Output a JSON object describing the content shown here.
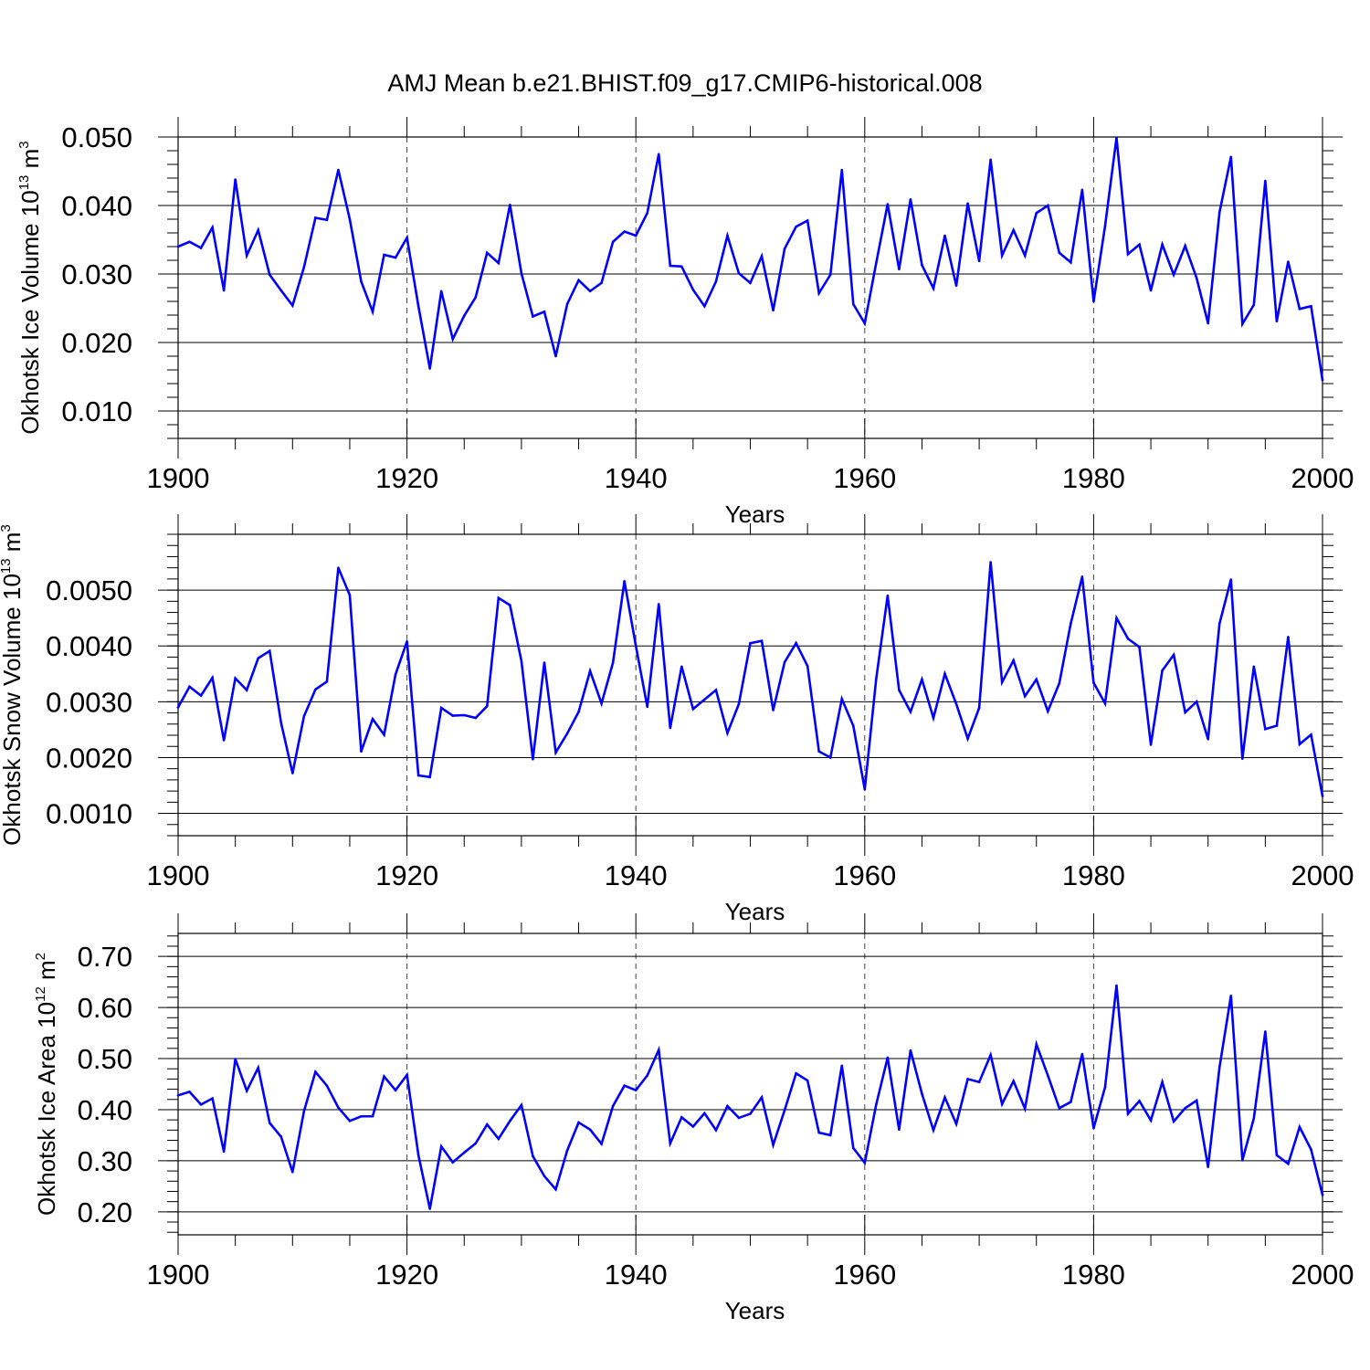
{
  "figure": {
    "title": "AMJ Mean b.e21.BHIST.f09_g17.CMIP6-historical.008",
    "line_color": "#0000ff",
    "grid_color": "#444444"
  },
  "chart_data": [
    {
      "type": "line",
      "ylabel_main": "Okhotsk Ice Volume 10",
      "ylabel_exp": "13",
      "ylabel_unit": " m",
      "ylabel_unit_exp": "3",
      "xlabel": "Years",
      "xlim": [
        1900,
        2000
      ],
      "ylim": [
        0.006,
        0.05
      ],
      "yticks": [
        0.01,
        0.02,
        0.03,
        0.04,
        0.05
      ],
      "ytick_labels": [
        "0.010",
        "0.020",
        "0.030",
        "0.040",
        "0.050"
      ],
      "xticks": [
        1900,
        1920,
        1940,
        1960,
        1980,
        2000
      ],
      "xtick_labels": [
        "1900",
        "1920",
        "1940",
        "1960",
        "1980",
        "2000"
      ],
      "grid_x": [
        1920,
        1940,
        1960,
        1980
      ],
      "series": [
        {
          "name": "Okhotsk Ice Volume",
          "x_start": 1900,
          "values": [
            0.034,
            0.0347,
            0.0338,
            0.0368,
            0.0276,
            0.0438,
            0.0327,
            0.0364,
            0.0299,
            0.0276,
            0.0254,
            0.031,
            0.0382,
            0.0379,
            0.0452,
            0.038,
            0.0289,
            0.0245,
            0.0328,
            0.0324,
            0.0353,
            0.0253,
            0.0162,
            0.0275,
            0.0205,
            0.0239,
            0.0266,
            0.0331,
            0.0316,
            0.0401,
            0.0301,
            0.0238,
            0.0245,
            0.018,
            0.0256,
            0.0291,
            0.0275,
            0.0287,
            0.0347,
            0.0362,
            0.0356,
            0.0389,
            0.0475,
            0.0312,
            0.0311,
            0.0277,
            0.0253,
            0.0289,
            0.0356,
            0.0301,
            0.0287,
            0.0326,
            0.0247,
            0.0337,
            0.0369,
            0.0378,
            0.0272,
            0.0299,
            0.0452,
            0.0256,
            0.0228,
            0.0316,
            0.0402,
            0.0307,
            0.0409,
            0.0313,
            0.0279,
            0.0356,
            0.0283,
            0.0403,
            0.0319,
            0.0467,
            0.0327,
            0.0364,
            0.0327,
            0.0389,
            0.04,
            0.0331,
            0.0317,
            0.0423,
            0.026,
            0.037,
            0.0499,
            0.0329,
            0.0343,
            0.0276,
            0.0343,
            0.0299,
            0.0341,
            0.0294,
            0.0228,
            0.039,
            0.0471,
            0.0227,
            0.0255,
            0.0436,
            0.0231,
            0.0318,
            0.0249,
            0.0253,
            0.0145
          ]
        }
      ]
    },
    {
      "type": "line",
      "ylabel_main": "Okhotsk Snow Volume 10",
      "ylabel_exp": "13",
      "ylabel_unit": " m",
      "ylabel_unit_exp": "3",
      "xlabel": "Years",
      "xlim": [
        1900,
        2000
      ],
      "ylim": [
        0.0006,
        0.006
      ],
      "yticks": [
        0.001,
        0.002,
        0.003,
        0.004,
        0.005
      ],
      "ytick_labels": [
        "0.0010",
        "0.0020",
        "0.0030",
        "0.0040",
        "0.0050"
      ],
      "xticks": [
        1900,
        1920,
        1940,
        1960,
        1980,
        2000
      ],
      "xtick_labels": [
        "1900",
        "1920",
        "1940",
        "1960",
        "1980",
        "2000"
      ],
      "grid_x": [
        1920,
        1940,
        1960,
        1980
      ],
      "series": [
        {
          "name": "Okhotsk Snow Volume",
          "x_start": 1900,
          "values": [
            0.0029,
            0.00327,
            0.00311,
            0.00343,
            0.00231,
            0.00342,
            0.00321,
            0.00378,
            0.00391,
            0.00262,
            0.00172,
            0.00274,
            0.00322,
            0.00336,
            0.0054,
            0.00491,
            0.00211,
            0.00269,
            0.00241,
            0.00349,
            0.00408,
            0.00168,
            0.00165,
            0.00289,
            0.00275,
            0.00276,
            0.00271,
            0.00292,
            0.00486,
            0.00473,
            0.00373,
            0.00197,
            0.0037,
            0.00209,
            0.00243,
            0.00282,
            0.00355,
            0.00297,
            0.0037,
            0.00516,
            0.004,
            0.00291,
            0.00475,
            0.00253,
            0.00363,
            0.00287,
            0.00304,
            0.00321,
            0.00244,
            0.00296,
            0.00405,
            0.00409,
            0.00285,
            0.00371,
            0.00405,
            0.00364,
            0.00211,
            0.002,
            0.00305,
            0.00257,
            0.00143,
            0.00341,
            0.0049,
            0.00321,
            0.00282,
            0.0034,
            0.00271,
            0.0035,
            0.00296,
            0.00234,
            0.00289,
            0.0055,
            0.00335,
            0.00374,
            0.0031,
            0.0034,
            0.00283,
            0.00333,
            0.0044,
            0.00524,
            0.00334,
            0.00297,
            0.0045,
            0.00413,
            0.00398,
            0.00223,
            0.00356,
            0.00384,
            0.00281,
            0.003,
            0.00233,
            0.0044,
            0.00519,
            0.00198,
            0.00363,
            0.00251,
            0.00257,
            0.00416,
            0.00224,
            0.00241,
            0.00131
          ]
        }
      ]
    },
    {
      "type": "line",
      "ylabel_main": "Okhotsk Ice Area 10",
      "ylabel_exp": "12",
      "ylabel_unit": " m",
      "ylabel_unit_exp": "2",
      "xlabel": "Years",
      "xlim": [
        1900,
        2000
      ],
      "ylim": [
        0.155,
        0.745
      ],
      "yticks": [
        0.2,
        0.3,
        0.4,
        0.5,
        0.6,
        0.7
      ],
      "ytick_labels": [
        "0.20",
        "0.30",
        "0.40",
        "0.50",
        "0.60",
        "0.70"
      ],
      "xticks": [
        1900,
        1920,
        1940,
        1960,
        1980,
        2000
      ],
      "xtick_labels": [
        "1900",
        "1920",
        "1940",
        "1960",
        "1980",
        "2000"
      ],
      "grid_x": [
        1920,
        1940,
        1960,
        1980
      ],
      "series": [
        {
          "name": "Okhotsk Ice Area",
          "x_start": 1900,
          "values": [
            0.428,
            0.435,
            0.41,
            0.422,
            0.318,
            0.499,
            0.437,
            0.482,
            0.374,
            0.347,
            0.278,
            0.397,
            0.474,
            0.447,
            0.404,
            0.378,
            0.387,
            0.387,
            0.465,
            0.438,
            0.468,
            0.311,
            0.206,
            0.328,
            0.297,
            0.316,
            0.334,
            0.371,
            0.343,
            0.378,
            0.409,
            0.309,
            0.27,
            0.244,
            0.32,
            0.375,
            0.361,
            0.333,
            0.407,
            0.447,
            0.438,
            0.467,
            0.517,
            0.334,
            0.385,
            0.367,
            0.393,
            0.36,
            0.407,
            0.384,
            0.392,
            0.424,
            0.331,
            0.399,
            0.471,
            0.457,
            0.355,
            0.35,
            0.486,
            0.325,
            0.296,
            0.41,
            0.502,
            0.361,
            0.516,
            0.431,
            0.36,
            0.424,
            0.372,
            0.46,
            0.454,
            0.507,
            0.411,
            0.456,
            0.402,
            0.528,
            0.467,
            0.403,
            0.415,
            0.509,
            0.364,
            0.444,
            0.643,
            0.392,
            0.417,
            0.379,
            0.454,
            0.377,
            0.403,
            0.418,
            0.288,
            0.483,
            0.623,
            0.301,
            0.383,
            0.553,
            0.311,
            0.294,
            0.366,
            0.322,
            0.233
          ]
        }
      ]
    }
  ]
}
